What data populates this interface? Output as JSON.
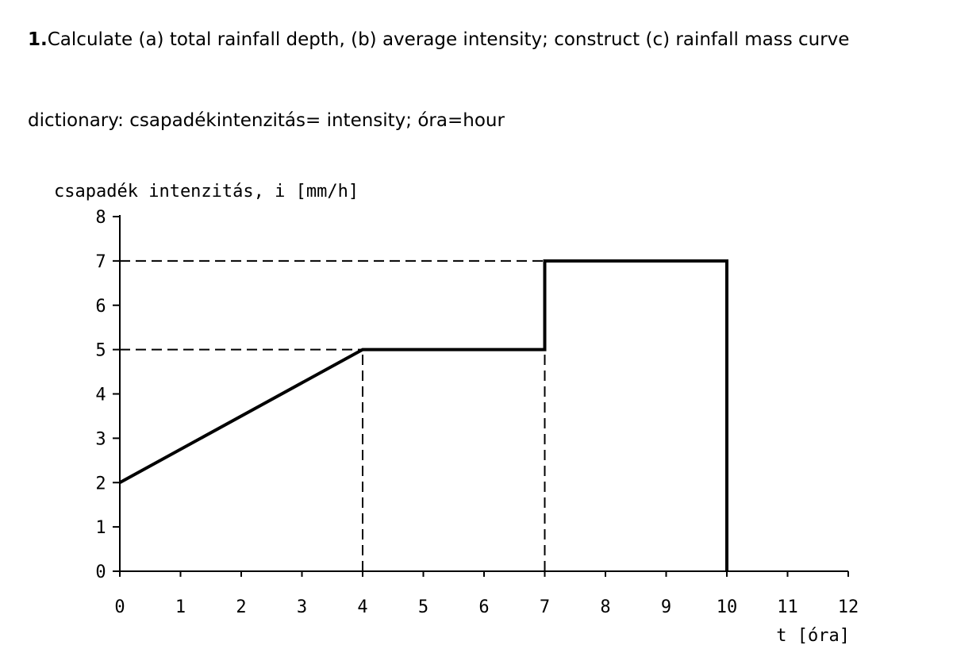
{
  "question": {
    "number": "1.",
    "text": "Calculate (a) total rainfall depth, (b) average intensity; construct (c) rainfall mass curve"
  },
  "dictionary": "dictionary: csapadékintenzitás= intensity; óra=hour",
  "chart_data": {
    "type": "line",
    "title": "",
    "ylabel": "csapadék intenzitás, i [mm/h]",
    "xlabel": "t [óra]",
    "xlim": [
      0,
      12
    ],
    "ylim": [
      0,
      8
    ],
    "xticks": [
      0,
      1,
      2,
      3,
      4,
      5,
      6,
      7,
      8,
      9,
      10,
      11,
      12
    ],
    "yticks": [
      0,
      1,
      2,
      3,
      4,
      5,
      6,
      7,
      8
    ],
    "grid": false,
    "series": [
      {
        "x": [
          0,
          4,
          7,
          7,
          10,
          10
        ],
        "y": [
          2,
          5,
          5,
          7,
          7,
          0
        ]
      }
    ],
    "reference_lines": [
      {
        "style": "dashed",
        "x": [
          0,
          4
        ],
        "y": [
          5,
          5
        ]
      },
      {
        "style": "dashed",
        "x": [
          4,
          4
        ],
        "y": [
          0,
          5
        ]
      },
      {
        "style": "dashed",
        "x": [
          0,
          7
        ],
        "y": [
          7,
          7
        ]
      },
      {
        "style": "dashed",
        "x": [
          7,
          7
        ],
        "y": [
          0,
          5
        ]
      }
    ]
  }
}
